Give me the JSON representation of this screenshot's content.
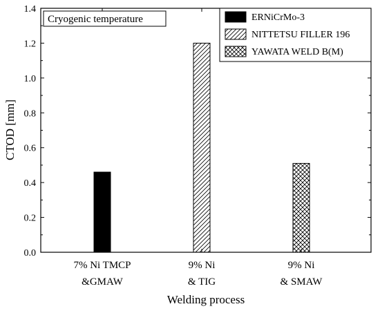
{
  "chart_data": {
    "type": "bar",
    "annotation": "Cryogenic temperature",
    "xlabel": "Welding process",
    "ylabel": "CTOD [mm]",
    "ylim": [
      0.0,
      1.4
    ],
    "yticks": [
      "0.0",
      "0.2",
      "0.4",
      "0.6",
      "0.8",
      "1.0",
      "1.2",
      "1.4"
    ],
    "grid": false,
    "legend_position": "top-right",
    "categories": [
      {
        "line1": "7% Ni TMCP",
        "line2": "&GMAW"
      },
      {
        "line1": "9% Ni",
        "line2": "& TIG"
      },
      {
        "line1": "9% Ni",
        "line2": "& SMAW"
      }
    ],
    "series": [
      {
        "name": "ERNiCrMo-3",
        "fill": "solid-black",
        "values": [
          0.46,
          null,
          null
        ]
      },
      {
        "name": "NITTETSU FILLER 196",
        "fill": "diagonal-hatch",
        "values": [
          null,
          1.2,
          null
        ]
      },
      {
        "name": "YAWATA WELD B(M)",
        "fill": "cross-hatch",
        "values": [
          null,
          null,
          0.51
        ]
      }
    ]
  }
}
